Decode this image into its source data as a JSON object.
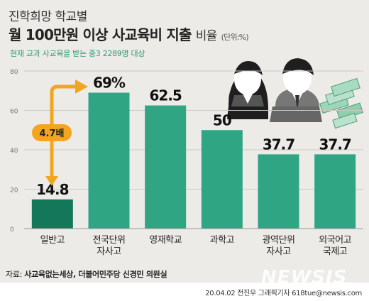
{
  "header": {
    "line1": "진학희망 학교별",
    "line2_bold": "월 100만원 이상 사교육비 지출",
    "line2_rest": "비율",
    "unit": "(단위:%)",
    "subtitle": "현재 교과 사교육을 받는 중3 2289명 대상"
  },
  "chart_data": {
    "type": "bar",
    "categories": [
      "일반고",
      "전국단위\n자사고",
      "영재학교",
      "과학고",
      "광역단위\n자사고",
      "외국어고\n국제고"
    ],
    "values": [
      14.8,
      69,
      62.5,
      50,
      37.7,
      37.7
    ],
    "value_labels": [
      "14.8",
      "69%",
      "62.5",
      "50",
      "37.7",
      "37.7"
    ],
    "ylim": [
      0,
      80
    ],
    "yticks": [
      0,
      20,
      40,
      60,
      80
    ],
    "grid": true,
    "annotation": "4.7배",
    "colors": {
      "highlight": "#14775a",
      "bar": "#2fa584",
      "arrow": "#f2a51f",
      "grid": "#c9c9c6"
    }
  },
  "footer": {
    "source_prefix": "자료: ",
    "source": "사교육없는세상, 더불어민주당 신경민 의원실",
    "credit": "20.04.02 전진우 그래픽기자 618tue@newsis.com",
    "logo": "NEWSIS"
  },
  "illustration": {
    "icons": [
      "student-girl-icon",
      "student-boy-icon",
      "money-stack-icon"
    ]
  }
}
